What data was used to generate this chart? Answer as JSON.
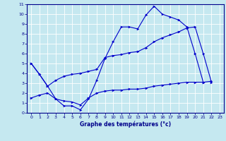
{
  "xlabel": "Graphe des températures (°c)",
  "xlim": [
    -0.5,
    23.5
  ],
  "ylim": [
    0,
    11
  ],
  "xticks": [
    0,
    1,
    2,
    3,
    4,
    5,
    6,
    7,
    8,
    9,
    10,
    11,
    12,
    13,
    14,
    15,
    16,
    17,
    18,
    19,
    20,
    21,
    22,
    23
  ],
  "yticks": [
    0,
    1,
    2,
    3,
    4,
    5,
    6,
    7,
    8,
    9,
    10,
    11
  ],
  "bg_color": "#c5e8f0",
  "grid_color": "#ffffff",
  "line_color": "#0000cc",
  "line1_x": [
    0,
    1,
    2,
    3,
    4,
    5,
    6,
    7,
    8,
    9,
    10,
    11,
    12,
    13,
    14,
    15,
    16,
    17,
    18,
    19,
    20,
    21
  ],
  "line1_y": [
    5.0,
    3.9,
    2.7,
    1.4,
    0.7,
    0.7,
    0.3,
    1.4,
    3.3,
    5.5,
    7.2,
    8.7,
    8.7,
    8.5,
    9.9,
    10.8,
    10.0,
    9.7,
    9.4,
    8.7,
    6.0,
    3.1
  ],
  "line2_x": [
    0,
    1,
    2,
    3,
    4,
    5,
    6,
    7,
    8,
    9,
    10,
    11,
    12,
    13,
    14,
    15,
    16,
    17,
    18,
    19,
    20,
    21,
    22
  ],
  "line2_y": [
    5.0,
    3.9,
    2.7,
    3.3,
    3.7,
    3.9,
    4.0,
    4.2,
    4.4,
    5.6,
    5.8,
    5.9,
    6.1,
    6.2,
    6.6,
    7.2,
    7.6,
    7.9,
    8.2,
    8.6,
    8.7,
    6.0,
    3.1
  ],
  "line3_x": [
    0,
    1,
    2,
    3,
    4,
    5,
    6,
    7,
    8,
    9,
    10,
    11,
    12,
    13,
    14,
    15,
    16,
    17,
    18,
    19,
    20,
    21,
    22
  ],
  "line3_y": [
    1.5,
    1.8,
    2.0,
    1.4,
    1.2,
    1.1,
    0.8,
    1.5,
    2.0,
    2.2,
    2.3,
    2.3,
    2.4,
    2.4,
    2.5,
    2.7,
    2.8,
    2.9,
    3.0,
    3.1,
    3.1,
    3.1,
    3.2
  ]
}
